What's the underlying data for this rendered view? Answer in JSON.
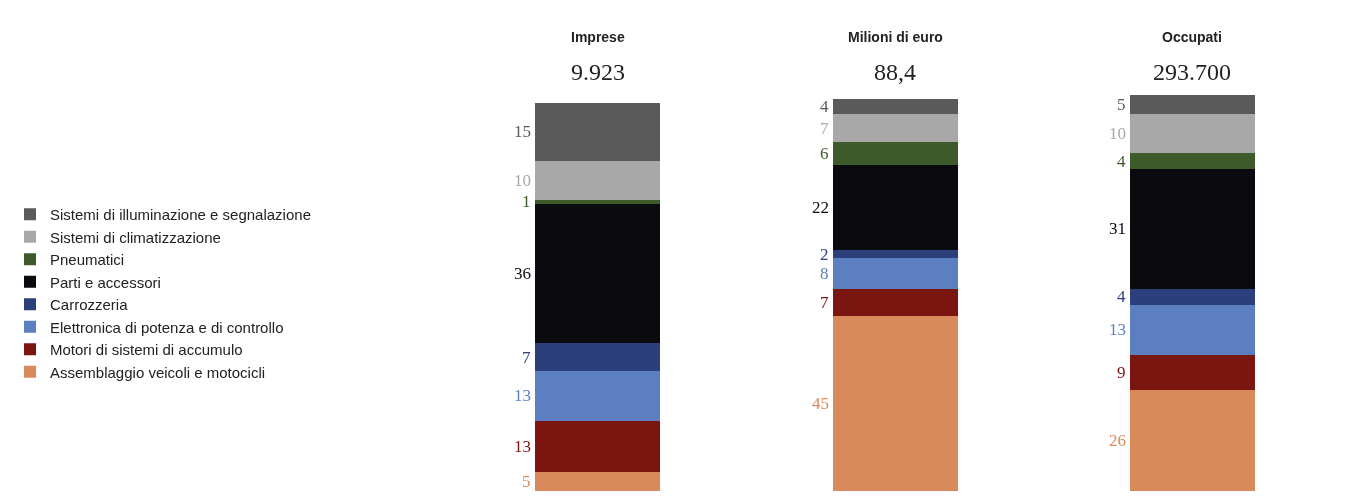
{
  "chart_data": {
    "type": "bar",
    "stacked": true,
    "data_labels": true,
    "legend": "left",
    "categories": [
      "Imprese",
      "Milioni di euro",
      "Occupati"
    ],
    "annotations": [
      "9.923",
      "88,4",
      "293.700"
    ],
    "series": [
      {
        "name": "Assemblaggio veicoli e motocicli",
        "color": "#d88a5a",
        "values": [
          5,
          45,
          26
        ]
      },
      {
        "name": "Motori di sistemi di accumulo",
        "color": "#7a1510",
        "values": [
          13,
          7,
          9
        ]
      },
      {
        "name": "Elettronica di potenza e di controllo",
        "color": "#5b7fc0",
        "values": [
          13,
          8,
          13
        ]
      },
      {
        "name": "Carrozzeria",
        "color": "#2b3f7a",
        "values": [
          7,
          2,
          4
        ]
      },
      {
        "name": "Parti e accessori",
        "color": "#0a0a0f",
        "values": [
          36,
          22,
          31
        ]
      },
      {
        "name": "Pneumatici",
        "color": "#3d5a2a",
        "values": [
          1,
          6,
          4
        ]
      },
      {
        "name": "Sistemi di climatizzazione",
        "color": "#a8a8a8",
        "values": [
          10,
          7,
          10
        ]
      },
      {
        "name": "Sistemi di illuminazione e segnalazione",
        "color": "#5a5a5a",
        "values": [
          15,
          4,
          5
        ]
      }
    ]
  }
}
